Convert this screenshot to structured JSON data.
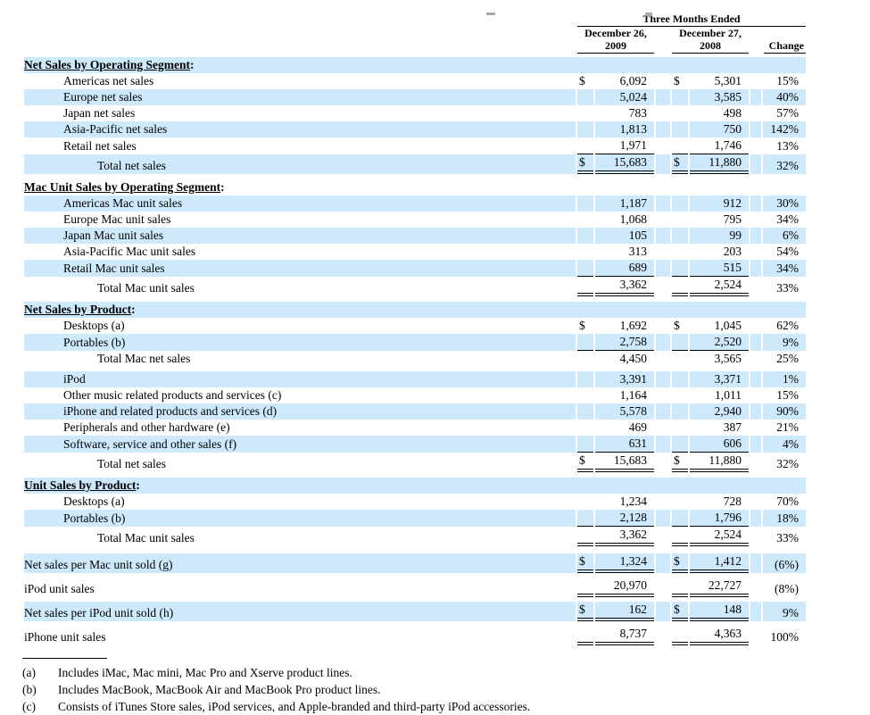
{
  "header": {
    "period_label": "Three Months Ended",
    "col_2009": {
      "line1": "December 26,",
      "line2": "2009"
    },
    "col_2008": {
      "line1": "December 27,",
      "line2": "2008"
    },
    "change_label": "Change"
  },
  "accent_color": "#cde9fb",
  "table": {
    "rows": [
      {
        "type": "section",
        "label": "Net Sales by Operating Segment",
        "suffix": ":",
        "shade": true
      },
      {
        "type": "data",
        "indent": 1,
        "label": "Americas net sales",
        "d1": "$",
        "v1": "6,092",
        "d2": "$",
        "v2": "5,301",
        "chg": "15%",
        "shade": false,
        "rule": "none"
      },
      {
        "type": "data",
        "indent": 1,
        "label": "Europe net sales",
        "d1": "",
        "v1": "5,024",
        "d2": "",
        "v2": "3,585",
        "chg": "40%",
        "shade": true,
        "rule": "none"
      },
      {
        "type": "data",
        "indent": 1,
        "label": "Japan net sales",
        "d1": "",
        "v1": "783",
        "d2": "",
        "v2": "498",
        "chg": "57%",
        "shade": false,
        "rule": "none"
      },
      {
        "type": "data",
        "indent": 1,
        "label": "Asia-Pacific net sales",
        "d1": "",
        "v1": "1,813",
        "d2": "",
        "v2": "750",
        "chg": "142%",
        "shade": true,
        "rule": "none"
      },
      {
        "type": "data",
        "indent": 1,
        "label": "Retail net sales",
        "d1": "",
        "v1": "1,971",
        "d2": "",
        "v2": "1,746",
        "chg": "13%",
        "shade": false,
        "rule": "single"
      },
      {
        "type": "data",
        "indent": 2,
        "label": "Total net sales",
        "d1": "$",
        "v1": "15,683",
        "d2": "$",
        "v2": "11,880",
        "chg": "32%",
        "shade": true,
        "rule": "double"
      },
      {
        "type": "spacer",
        "h": "sp6"
      },
      {
        "type": "section",
        "label": "Mac Unit Sales by Operating Segment",
        "suffix": ":",
        "shade": false
      },
      {
        "type": "data",
        "indent": 1,
        "label": "Americas Mac unit sales",
        "d1": "",
        "v1": "1,187",
        "d2": "",
        "v2": "912",
        "chg": "30%",
        "shade": true,
        "rule": "none"
      },
      {
        "type": "data",
        "indent": 1,
        "label": "Europe Mac unit sales",
        "d1": "",
        "v1": "1,068",
        "d2": "",
        "v2": "795",
        "chg": "34%",
        "shade": false,
        "rule": "none"
      },
      {
        "type": "data",
        "indent": 1,
        "label": "Japan Mac unit sales",
        "d1": "",
        "v1": "105",
        "d2": "",
        "v2": "99",
        "chg": "6%",
        "shade": true,
        "rule": "none"
      },
      {
        "type": "data",
        "indent": 1,
        "label": "Asia-Pacific Mac unit sales",
        "d1": "",
        "v1": "313",
        "d2": "",
        "v2": "203",
        "chg": "54%",
        "shade": false,
        "rule": "none"
      },
      {
        "type": "data",
        "indent": 1,
        "label": "Retail Mac unit sales",
        "d1": "",
        "v1": "689",
        "d2": "",
        "v2": "515",
        "chg": "34%",
        "shade": true,
        "rule": "single"
      },
      {
        "type": "data",
        "indent": 2,
        "label": "Total Mac unit sales",
        "d1": "",
        "v1": "3,362",
        "d2": "",
        "v2": "2,524",
        "chg": "33%",
        "shade": false,
        "rule": "double"
      },
      {
        "type": "spacer",
        "h": "sp6"
      },
      {
        "type": "section",
        "label": "Net Sales by Product",
        "suffix": ":",
        "shade": true
      },
      {
        "type": "data",
        "indent": 1,
        "label": "Desktops (a)",
        "d1": "$",
        "v1": "1,692",
        "d2": "$",
        "v2": "1,045",
        "chg": "62%",
        "shade": false,
        "rule": "none"
      },
      {
        "type": "data",
        "indent": 1,
        "label": "Portables (b)",
        "d1": "",
        "v1": "2,758",
        "d2": "",
        "v2": "2,520",
        "chg": "9%",
        "shade": true,
        "rule": "single"
      },
      {
        "type": "data",
        "indent": 2,
        "label": "Total Mac net sales",
        "d1": "",
        "v1": "4,450",
        "d2": "",
        "v2": "3,565",
        "chg": "25%",
        "shade": false,
        "rule": "none"
      },
      {
        "type": "spacer",
        "h": "sp5"
      },
      {
        "type": "data",
        "indent": 1,
        "label": "iPod",
        "d1": "",
        "v1": "3,391",
        "d2": "",
        "v2": "3,371",
        "chg": "1%",
        "shade": true,
        "rule": "none"
      },
      {
        "type": "data",
        "indent": 1,
        "label": "Other music related products and services (c)",
        "d1": "",
        "v1": "1,164",
        "d2": "",
        "v2": "1,011",
        "chg": "15%",
        "shade": false,
        "rule": "none"
      },
      {
        "type": "data",
        "indent": 1,
        "label": "iPhone and related products and services (d)",
        "d1": "",
        "v1": "5,578",
        "d2": "",
        "v2": "2,940",
        "chg": "90%",
        "shade": true,
        "rule": "none"
      },
      {
        "type": "data",
        "indent": 1,
        "label": "Peripherals and other hardware (e)",
        "d1": "",
        "v1": "469",
        "d2": "",
        "v2": "387",
        "chg": "21%",
        "shade": false,
        "rule": "none"
      },
      {
        "type": "data",
        "indent": 1,
        "label": "Software, service and other sales (f)",
        "d1": "",
        "v1": "631",
        "d2": "",
        "v2": "606",
        "chg": "4%",
        "shade": true,
        "rule": "single"
      },
      {
        "type": "data",
        "indent": 2,
        "label": "Total net sales",
        "d1": "$",
        "v1": "15,683",
        "d2": "$",
        "v2": "11,880",
        "chg": "32%",
        "shade": false,
        "rule": "double"
      },
      {
        "type": "spacer",
        "h": "sp6"
      },
      {
        "type": "section",
        "label": "Unit Sales by Product",
        "suffix": ":",
        "shade": true
      },
      {
        "type": "data",
        "indent": 1,
        "label": "Desktops (a)",
        "d1": "",
        "v1": "1,234",
        "d2": "",
        "v2": "728",
        "chg": "70%",
        "shade": false,
        "rule": "none"
      },
      {
        "type": "data",
        "indent": 1,
        "label": "Portables (b)",
        "d1": "",
        "v1": "2,128",
        "d2": "",
        "v2": "1,796",
        "chg": "18%",
        "shade": true,
        "rule": "single"
      },
      {
        "type": "data",
        "indent": 2,
        "label": "Total Mac unit sales",
        "d1": "",
        "v1": "3,362",
        "d2": "",
        "v2": "2,524",
        "chg": "33%",
        "shade": false,
        "rule": "double"
      },
      {
        "type": "spacer",
        "h": "sp8"
      },
      {
        "type": "data",
        "indent": 0,
        "label": "Net sales per Mac unit sold (g)",
        "d1": "$",
        "v1": "1,324",
        "d2": "$",
        "v2": "1,412",
        "chg": "(6%)",
        "shade": true,
        "rule": "double"
      },
      {
        "type": "spacer",
        "h": "sp5"
      },
      {
        "type": "data",
        "indent": 0,
        "label": "iPod unit sales",
        "d1": "",
        "v1": "20,970",
        "d2": "",
        "v2": "22,727",
        "chg": "(8%)",
        "shade": false,
        "rule": "double"
      },
      {
        "type": "spacer",
        "h": "sp5"
      },
      {
        "type": "data",
        "indent": 0,
        "label": "Net sales per iPod unit sold (h)",
        "d1": "$",
        "v1": "162",
        "d2": "$",
        "v2": "148",
        "chg": "9%",
        "shade": true,
        "rule": "double"
      },
      {
        "type": "spacer",
        "h": "sp5"
      },
      {
        "type": "data",
        "indent": 0,
        "label": "iPhone unit sales",
        "d1": "",
        "v1": "8,737",
        "d2": "",
        "v2": "4,363",
        "chg": "100%",
        "shade": false,
        "rule": "double"
      }
    ]
  },
  "footnotes": [
    {
      "mark": "(a)",
      "text": "Includes iMac, Mac mini, Mac Pro and Xserve product lines."
    },
    {
      "mark": "(b)",
      "text": "Includes MacBook, MacBook Air and MacBook Pro product lines."
    },
    {
      "mark": "(c)",
      "text": "Consists of iTunes Store sales, iPod services, and Apple-branded and third-party iPod accessories."
    }
  ]
}
